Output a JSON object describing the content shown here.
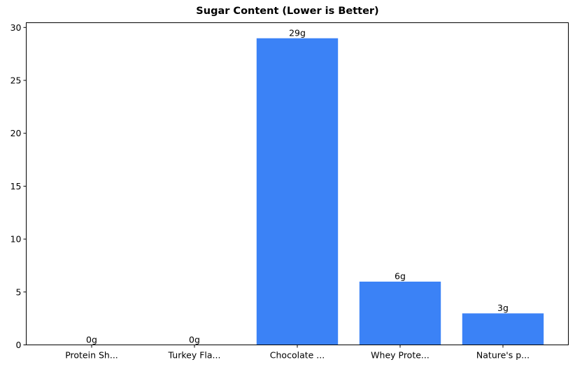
{
  "chart_data": {
    "type": "bar",
    "title": "Sugar Content (Lower is Better)",
    "xlabel": "",
    "ylabel": "",
    "categories": [
      "Protein Sh...",
      "Turkey Fla...",
      "Chocolate ...",
      "Whey Prote...",
      "Nature's p..."
    ],
    "values": [
      0,
      0,
      29,
      6,
      3
    ],
    "value_labels": [
      "0g",
      "0g",
      "29g",
      "6g",
      "3g"
    ],
    "ylim": [
      0,
      30.45
    ],
    "yticks": [
      0,
      5,
      10,
      15,
      20,
      25,
      30
    ],
    "grid": false,
    "legend": null,
    "bar_color": "#3b82f6"
  }
}
